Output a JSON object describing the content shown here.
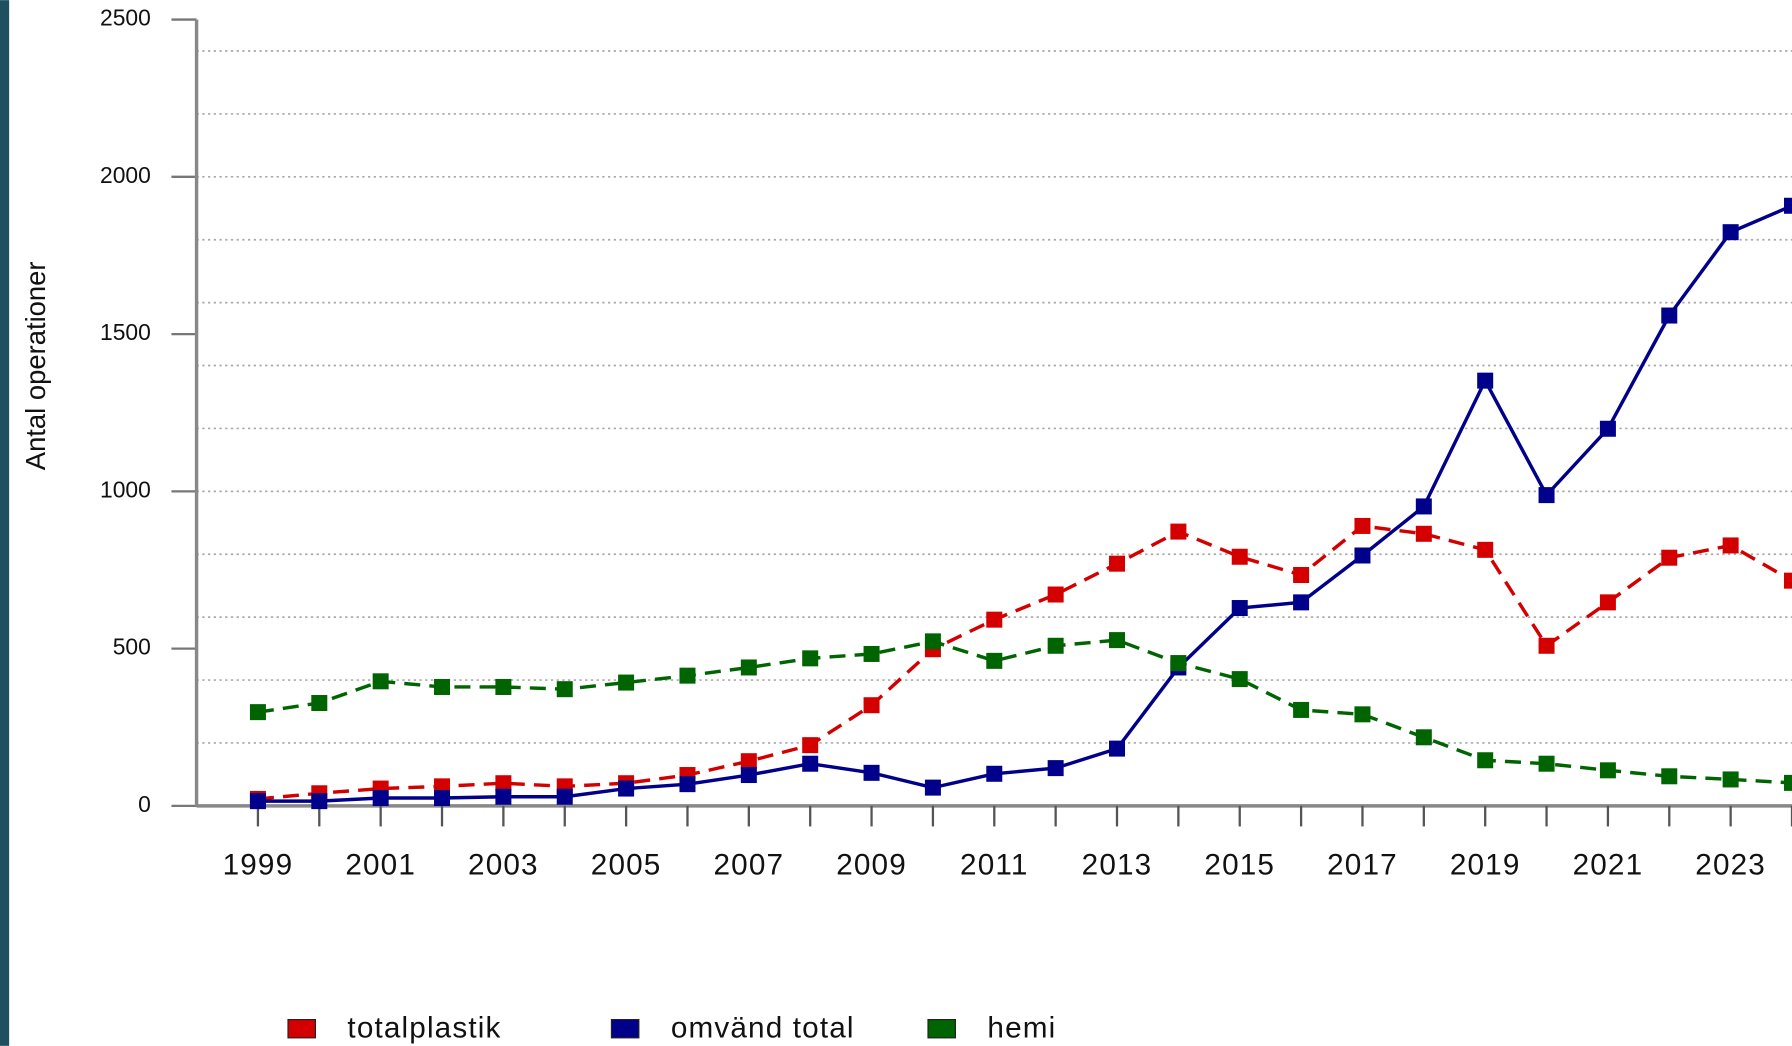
{
  "chart_data": {
    "type": "line",
    "ylabel": "Antal operationer",
    "x": [
      1999,
      2000,
      2001,
      2002,
      2003,
      2004,
      2005,
      2006,
      2007,
      2008,
      2009,
      2010,
      2011,
      2012,
      2013,
      2014,
      2015,
      2016,
      2017,
      2018,
      2019,
      2020,
      2021,
      2022,
      2023,
      2024
    ],
    "series": [
      {
        "name": "totalplastik",
        "color": "#d40000",
        "linestyle": "dashed",
        "values": [
          22,
          40,
          55,
          62,
          72,
          62,
          72,
          98,
          142,
          193,
          320,
          498,
          592,
          672,
          770,
          872,
          792,
          734,
          890,
          865,
          814,
          509,
          647,
          789,
          828,
          716
        ]
      },
      {
        "name": "omvänd total",
        "color": "#00008b",
        "linestyle": "solid",
        "values": [
          15,
          15,
          25,
          25,
          29,
          29,
          55,
          69,
          98,
          134,
          105,
          58,
          102,
          120,
          182,
          440,
          629,
          647,
          796,
          952,
          1352,
          988,
          1199,
          1559,
          1824,
          1908
        ]
      },
      {
        "name": "hemi",
        "color": "#006400",
        "linestyle": "dashed",
        "values": [
          298,
          327,
          396,
          378,
          378,
          371,
          392,
          414,
          440,
          469,
          483,
          523,
          461,
          509,
          527,
          454,
          403,
          305,
          291,
          218,
          145,
          134,
          113,
          94,
          84,
          73
        ]
      }
    ],
    "xlim": [
      1998,
      2024
    ],
    "xticks": [
      1999,
      2001,
      2003,
      2005,
      2007,
      2009,
      2011,
      2013,
      2015,
      2017,
      2019,
      2021,
      2023
    ],
    "ylim": [
      0,
      2500
    ],
    "yticks": [
      0,
      500,
      1000,
      1500,
      2000,
      2500
    ],
    "grid_lines": [
      200,
      400,
      600,
      800,
      1000,
      1200,
      1400,
      1600,
      1800,
      2000,
      2200,
      2400
    ],
    "legend": "bottom"
  }
}
